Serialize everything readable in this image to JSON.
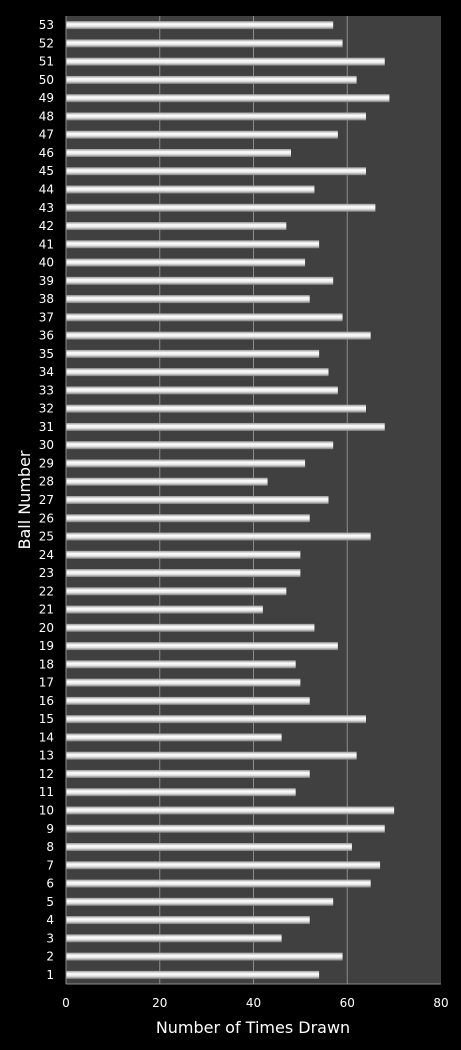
{
  "chart_data": {
    "type": "bar",
    "orientation": "horizontal",
    "title": "",
    "xlabel": "Number of Times Drawn",
    "ylabel": "Ball Number",
    "xlim": [
      0,
      80
    ],
    "xticks": [
      "0",
      "20",
      "40",
      "60",
      "80"
    ],
    "grid": true,
    "legend": "none",
    "colors": {
      "background": "#000000",
      "plot_area": "#404040",
      "bar": "#e6e6e6",
      "gridline": "#8c8c8c",
      "text": "#ffffff"
    },
    "categories": [
      "1",
      "2",
      "3",
      "4",
      "5",
      "6",
      "7",
      "8",
      "9",
      "10",
      "11",
      "12",
      "13",
      "14",
      "15",
      "16",
      "17",
      "18",
      "19",
      "20",
      "21",
      "22",
      "23",
      "24",
      "25",
      "26",
      "27",
      "28",
      "29",
      "30",
      "31",
      "32",
      "33",
      "34",
      "35",
      "36",
      "37",
      "38",
      "39",
      "40",
      "41",
      "42",
      "43",
      "44",
      "45",
      "46",
      "47",
      "48",
      "49",
      "50",
      "51",
      "52",
      "53"
    ],
    "values": [
      54,
      59,
      46,
      52,
      57,
      65,
      67,
      61,
      68,
      70,
      49,
      52,
      62,
      46,
      64,
      52,
      50,
      49,
      58,
      53,
      42,
      47,
      50,
      50,
      65,
      52,
      56,
      43,
      51,
      57,
      68,
      64,
      58,
      56,
      54,
      65,
      59,
      52,
      57,
      51,
      54,
      47,
      66,
      53,
      64,
      48,
      58,
      64,
      69,
      62,
      68,
      59,
      57
    ]
  }
}
